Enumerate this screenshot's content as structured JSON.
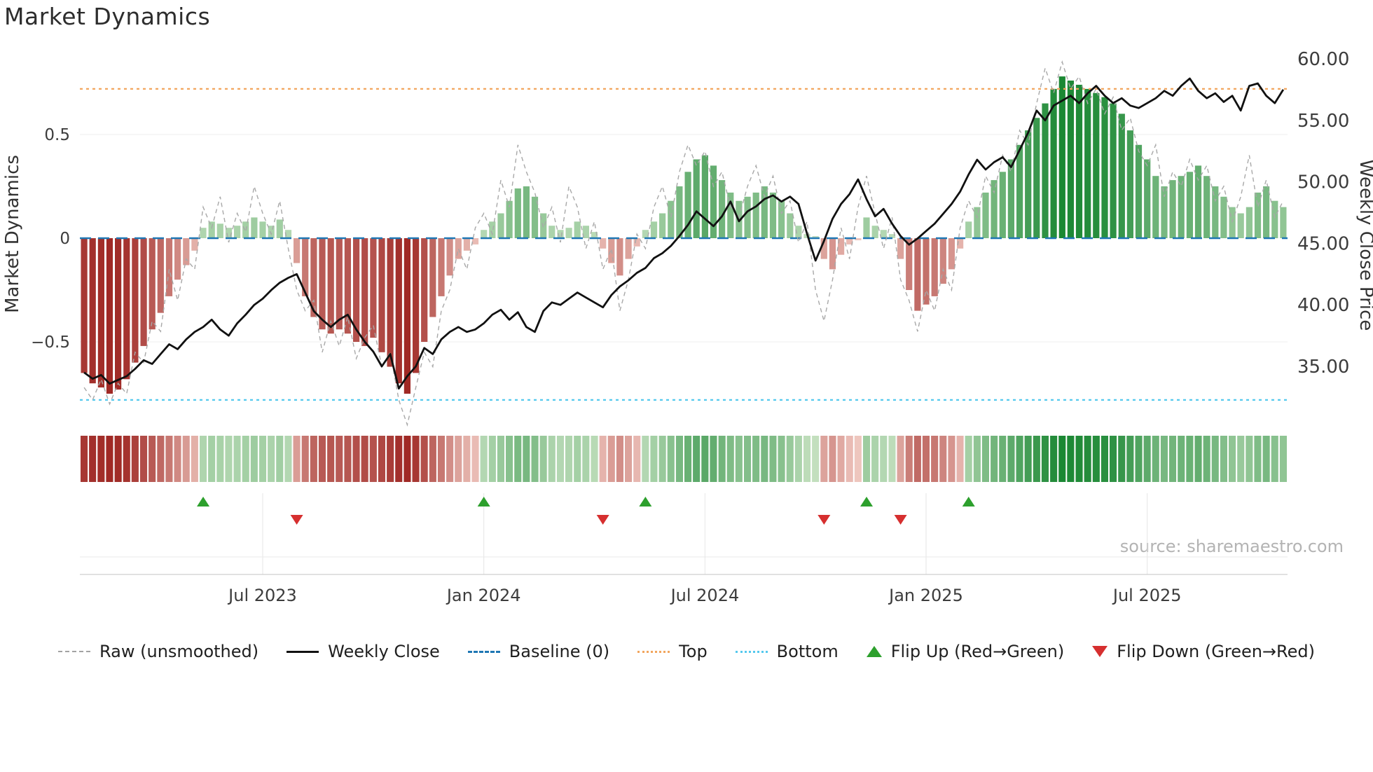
{
  "title": "Market Dynamics",
  "source": "source: sharemaestro.com",
  "legend": {
    "raw": "Raw (unsmoothed)",
    "close": "Weekly Close",
    "baseline": "Baseline (0)",
    "top": "Top",
    "bottom": "Bottom",
    "flip_up": "Flip Up (Red→Green)",
    "flip_down": "Flip Down (Green→Red)"
  },
  "chart_data": {
    "type": "bar+line",
    "title": "Market Dynamics",
    "legend_position": "bottom",
    "grid": "light",
    "left_axis": {
      "label": "Market Dynamics",
      "range": [
        -0.95,
        0.9
      ],
      "ticks": [
        {
          "value": 0.5,
          "label": "0.5"
        },
        {
          "value": 0,
          "label": "0"
        },
        {
          "value": -0.5,
          "label": "−0.5"
        }
      ]
    },
    "right_axis": {
      "label": "Weekly Close Price",
      "range": [
        33,
        60.5
      ],
      "ticks": [
        {
          "value": 60,
          "label": "60.00"
        },
        {
          "value": 55,
          "label": "55.00"
        },
        {
          "value": 50,
          "label": "50.00"
        },
        {
          "value": 45,
          "label": "45.00"
        },
        {
          "value": 40,
          "label": "40.00"
        },
        {
          "value": 35,
          "label": "35.00"
        }
      ]
    },
    "x_tick_labels": [
      "Jul 2023",
      "Jan 2024",
      "Jul 2024",
      "Jan 2025",
      "Jul 2025"
    ],
    "x_tick_weeks": [
      21,
      47,
      73,
      99,
      125
    ],
    "baseline": 0,
    "top_line": 0.72,
    "bottom_line": -0.78,
    "flip_up_weeks": [
      14,
      47,
      66,
      92,
      104
    ],
    "flip_down_weeks": [
      25,
      61,
      87,
      96
    ],
    "colors": {
      "bar_positive_dark": "#188631",
      "bar_positive_light": "#cde5c7",
      "bar_negative_dark": "#9c221e",
      "bar_negative_light": "#f3d0c8",
      "raw_line": "#a8a8a8",
      "close_line": "#111111",
      "baseline": "#1f77b4",
      "top_line": "#f2a65e",
      "bottom_line": "#55c9ee",
      "flip_up": "#2da02d",
      "flip_down": "#d62f2f"
    },
    "bars": [
      -0.65,
      -0.7,
      -0.72,
      -0.75,
      -0.73,
      -0.68,
      -0.6,
      -0.52,
      -0.44,
      -0.36,
      -0.28,
      -0.2,
      -0.13,
      -0.06,
      0.05,
      0.08,
      0.07,
      0.05,
      0.06,
      0.08,
      0.1,
      0.08,
      0.06,
      0.09,
      0.04,
      -0.12,
      -0.28,
      -0.38,
      -0.44,
      -0.46,
      -0.44,
      -0.46,
      -0.5,
      -0.52,
      -0.48,
      -0.55,
      -0.62,
      -0.7,
      -0.75,
      -0.65,
      -0.5,
      -0.38,
      -0.28,
      -0.18,
      -0.1,
      -0.06,
      -0.03,
      0.04,
      0.08,
      0.12,
      0.18,
      0.24,
      0.25,
      0.2,
      0.12,
      0.06,
      0.04,
      0.05,
      0.08,
      0.06,
      0.03,
      -0.05,
      -0.12,
      -0.18,
      -0.1,
      -0.04,
      0.04,
      0.08,
      0.12,
      0.18,
      0.25,
      0.32,
      0.38,
      0.4,
      0.35,
      0.28,
      0.22,
      0.18,
      0.2,
      0.22,
      0.25,
      0.22,
      0.18,
      0.12,
      0.06,
      0.02,
      0.01,
      -0.1,
      -0.15,
      -0.08,
      -0.03,
      -0.01,
      0.1,
      0.06,
      0.04,
      0.02,
      -0.1,
      -0.25,
      -0.35,
      -0.32,
      -0.28,
      -0.22,
      -0.15,
      -0.05,
      0.08,
      0.15,
      0.22,
      0.28,
      0.32,
      0.38,
      0.45,
      0.52,
      0.58,
      0.65,
      0.72,
      0.78,
      0.76,
      0.74,
      0.72,
      0.7,
      0.68,
      0.65,
      0.6,
      0.52,
      0.45,
      0.38,
      0.3,
      0.25,
      0.28,
      0.3,
      0.32,
      0.35,
      0.3,
      0.25,
      0.2,
      0.15,
      0.12,
      0.15,
      0.22,
      0.25,
      0.18,
      0.15
    ],
    "raw": [
      -0.72,
      -0.78,
      -0.68,
      -0.8,
      -0.7,
      -0.75,
      -0.55,
      -0.6,
      -0.4,
      -0.45,
      -0.15,
      -0.3,
      -0.1,
      -0.15,
      0.15,
      0.05,
      0.2,
      -0.02,
      0.12,
      0.03,
      0.25,
      0.12,
      0.02,
      0.18,
      -0.05,
      -0.25,
      -0.35,
      -0.3,
      -0.55,
      -0.4,
      -0.52,
      -0.38,
      -0.58,
      -0.48,
      -0.42,
      -0.62,
      -0.55,
      -0.78,
      -0.9,
      -0.72,
      -0.55,
      -0.62,
      -0.35,
      -0.25,
      -0.05,
      -0.15,
      0.05,
      0.12,
      0.02,
      0.28,
      0.15,
      0.45,
      0.32,
      0.22,
      0.05,
      0.15,
      -0.02,
      0.25,
      0.15,
      -0.05,
      0.08,
      -0.15,
      -0.05,
      -0.35,
      -0.2,
      0.02,
      -0.05,
      0.15,
      0.25,
      0.1,
      0.32,
      0.45,
      0.35,
      0.42,
      0.25,
      0.32,
      0.15,
      0.1,
      0.25,
      0.35,
      0.2,
      0.3,
      0.12,
      0.18,
      -0.02,
      0.08,
      -0.25,
      -0.4,
      -0.2,
      0.05,
      -0.1,
      0.15,
      0.3,
      0.12,
      -0.05,
      0.1,
      -0.2,
      -0.3,
      -0.45,
      -0.25,
      -0.35,
      -0.15,
      -0.25,
      0.05,
      0.18,
      0.1,
      0.3,
      0.22,
      0.4,
      0.32,
      0.52,
      0.45,
      0.65,
      0.82,
      0.7,
      0.85,
      0.72,
      0.78,
      0.65,
      0.72,
      0.6,
      0.68,
      0.52,
      0.58,
      0.42,
      0.35,
      0.45,
      0.2,
      0.32,
      0.25,
      0.38,
      0.28,
      0.35,
      0.18,
      0.25,
      0.08,
      0.2,
      0.4,
      0.15,
      0.28,
      0.1,
      0.18
    ],
    "close": [
      34.5,
      34.0,
      34.3,
      33.6,
      33.9,
      34.2,
      34.8,
      35.5,
      35.2,
      36.0,
      36.8,
      36.4,
      37.2,
      37.8,
      38.2,
      38.8,
      38.0,
      37.5,
      38.5,
      39.2,
      40.0,
      40.5,
      41.2,
      41.8,
      42.2,
      42.5,
      41.0,
      39.5,
      38.8,
      38.2,
      38.8,
      39.2,
      38.0,
      37.0,
      36.2,
      35.0,
      36.0,
      33.2,
      34.2,
      35.0,
      36.5,
      36.0,
      37.2,
      37.8,
      38.2,
      37.8,
      38.0,
      38.5,
      39.2,
      39.6,
      38.8,
      39.4,
      38.2,
      37.8,
      39.5,
      40.2,
      40.0,
      40.5,
      41.0,
      40.6,
      40.2,
      39.8,
      40.8,
      41.5,
      42.0,
      42.6,
      43.0,
      43.8,
      44.2,
      44.8,
      45.6,
      46.5,
      47.6,
      47.0,
      46.4,
      47.2,
      48.4,
      46.8,
      47.6,
      48.0,
      48.6,
      48.9,
      48.4,
      48.8,
      48.2,
      45.8,
      43.6,
      45.2,
      47.0,
      48.2,
      49.0,
      50.2,
      48.6,
      47.2,
      47.8,
      46.6,
      45.6,
      44.9,
      45.4,
      46.0,
      46.6,
      47.4,
      48.2,
      49.2,
      50.6,
      51.8,
      51.0,
      51.6,
      52.0,
      51.2,
      52.6,
      54.0,
      55.8,
      55.0,
      56.2,
      56.6,
      57.0,
      56.4,
      57.2,
      57.8,
      57.0,
      56.4,
      56.8,
      56.2,
      56.0,
      56.4,
      56.8,
      57.4,
      57.0,
      57.8,
      58.4,
      57.4,
      56.8,
      57.2,
      56.5,
      57.0,
      55.8,
      57.8,
      58.0,
      57.0,
      56.4,
      57.5
    ]
  }
}
